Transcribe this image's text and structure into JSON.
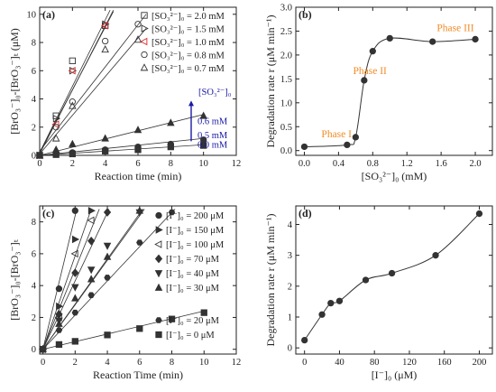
{
  "chart_data": [
    {
      "id": "a",
      "type": "scatter",
      "panel_label": "(a)",
      "xlabel": "Reaction time (min)",
      "ylabel": "[BrO₃⁻]₀-[BrO₃⁻]ₜ (μM)",
      "xlim": [
        0,
        12
      ],
      "ylim": [
        0,
        10.5
      ],
      "xticks": [
        0,
        2,
        4,
        6,
        8,
        10,
        12
      ],
      "yticks": [
        0,
        2,
        4,
        6,
        8,
        10
      ],
      "legend_position": "top-right",
      "series": [
        {
          "name": "[SO₃²⁻]₀ = 2.0 mM",
          "marker": "square",
          "color": "#333333",
          "x": [
            0,
            1,
            2,
            4
          ],
          "y": [
            0,
            2.8,
            6.7,
            9.2
          ],
          "fit": [
            [
              0,
              0.1
            ],
            [
              4.5,
              10.3
            ]
          ]
        },
        {
          "name": "[SO₃²⁻]₀ = 1.5 mM",
          "marker": "triangle-right",
          "color": "#333333",
          "x": [
            0,
            1,
            2,
            4
          ],
          "y": [
            0,
            2.6,
            6.0,
            9.3
          ],
          "fit": [
            [
              0,
              0.2
            ],
            [
              4.3,
              10.3
            ]
          ]
        },
        {
          "name": "[SO₃²⁻]₀ = 1.0 mM",
          "marker": "triangle-left",
          "color": "#d62728",
          "x": [
            0,
            1,
            2,
            4
          ],
          "y": [
            0,
            2.2,
            6.0,
            9.2
          ],
          "fit": [
            [
              0,
              0.2
            ],
            [
              4.5,
              10.2
            ]
          ]
        },
        {
          "name": "[SO₃²⁻]₀ = 0.8 mM",
          "marker": "circle",
          "color": "#333333",
          "x": [
            0,
            1,
            2,
            4,
            6
          ],
          "y": [
            0,
            2.0,
            3.8,
            8.1,
            9.3
          ],
          "fit": [
            [
              0,
              0.3
            ],
            [
              6.5,
              10.0
            ]
          ]
        },
        {
          "name": "[SO₃²⁻]₀ = 0.7 mM",
          "marker": "triangle-up",
          "color": "#333333",
          "x": [
            0,
            1,
            2,
            4,
            6
          ],
          "y": [
            0,
            1.2,
            3.5,
            7.5,
            8.2
          ],
          "fit": [
            [
              0,
              0.1
            ],
            [
              6.5,
              9.0
            ]
          ]
        },
        {
          "name": "0.6 mM",
          "marker": "triangle-up-filled",
          "color": "#333333",
          "x": [
            0,
            1,
            2,
            4,
            6,
            8,
            10
          ],
          "y": [
            0,
            0.4,
            0.8,
            1.2,
            1.8,
            2.3,
            2.8
          ],
          "fit": [
            [
              0,
              0
            ],
            [
              10,
              2.9
            ]
          ]
        },
        {
          "name": "0.5 mM",
          "marker": "circle-filled",
          "color": "#333333",
          "x": [
            0,
            1,
            2,
            4,
            6,
            8,
            10
          ],
          "y": [
            0,
            0.1,
            0.2,
            0.4,
            0.6,
            0.8,
            1.1
          ],
          "fit": [
            [
              0,
              0
            ],
            [
              10,
              1.2
            ]
          ]
        },
        {
          "name": "0.0 mM",
          "marker": "square-filled",
          "color": "#333333",
          "x": [
            0,
            1,
            2,
            4,
            6,
            8,
            10
          ],
          "y": [
            0,
            0.05,
            0.1,
            0.3,
            0.4,
            0.6,
            0.7
          ],
          "fit": [
            [
              0,
              0
            ],
            [
              10,
              0.75
            ]
          ]
        }
      ],
      "annotation": {
        "label": "[SO₃²⁻]₀",
        "color": "#1a1aa6"
      }
    },
    {
      "id": "b",
      "type": "line",
      "panel_label": "(b)",
      "xlabel": "[SO₃²⁻]₀ (mM)",
      "ylabel": "Degradation rate r (μM min⁻¹)",
      "xlim": [
        -0.1,
        2.2
      ],
      "ylim": [
        -0.1,
        3.0
      ],
      "xticks": [
        0.0,
        0.4,
        0.8,
        1.2,
        1.6,
        2.0
      ],
      "yticks": [
        0.0,
        0.5,
        1.0,
        1.5,
        2.0,
        2.5,
        3.0
      ],
      "series": [
        {
          "name": "",
          "marker": "circle-filled",
          "color": "#333333",
          "x": [
            0.0,
            0.5,
            0.6,
            0.7,
            0.8,
            1.0,
            1.5,
            2.0
          ],
          "y": [
            0.08,
            0.12,
            0.28,
            1.47,
            2.08,
            2.35,
            2.28,
            2.33
          ]
        }
      ],
      "annotations": [
        {
          "text": "Phase I",
          "x": 0.2,
          "y": 0.28,
          "color": "#f28c28"
        },
        {
          "text": "Phase II",
          "x": 0.57,
          "y": 1.6,
          "color": "#f28c28"
        },
        {
          "text": "Phase III",
          "x": 1.55,
          "y": 2.5,
          "color": "#f28c28"
        }
      ]
    },
    {
      "id": "c",
      "type": "scatter",
      "panel_label": "(c)",
      "xlabel": "Reaction Time (min)",
      "ylabel": "[BrO₃⁻]₀-[BrO₃⁻]ₜ",
      "xlim": [
        -0.2,
        12
      ],
      "ylim": [
        -0.3,
        9
      ],
      "xticks": [
        0,
        2,
        4,
        6,
        8,
        10,
        12
      ],
      "yticks": [
        0,
        2,
        4,
        6,
        8
      ],
      "legend_position": "right",
      "series": [
        {
          "name": "[I⁻]₀ = 200 μM",
          "marker": "circle-filled",
          "x": [
            0,
            1,
            2
          ],
          "y": [
            0,
            3.8,
            8.7
          ],
          "fit": [
            [
              0,
              0
            ],
            [
              2.1,
              8.8
            ]
          ]
        },
        {
          "name": "[I⁻]₀ = 150 μM",
          "marker": "triangle-right-filled",
          "x": [
            0,
            1,
            2,
            3
          ],
          "y": [
            0,
            2.7,
            6.9,
            8.7
          ],
          "fit": [
            [
              0,
              0
            ],
            [
              3.0,
              8.8
            ]
          ]
        },
        {
          "name": "[I⁻]₀ = 100 μM",
          "marker": "triangle-left",
          "x": [
            0,
            1,
            2,
            3
          ],
          "y": [
            0,
            2.0,
            6.0,
            8.1
          ],
          "fit": [
            [
              0,
              0
            ],
            [
              3.5,
              8.8
            ]
          ]
        },
        {
          "name": "[I⁻]₀ = 70 μM",
          "marker": "diamond-filled",
          "x": [
            0,
            1,
            2,
            3,
            4
          ],
          "y": [
            0,
            2.2,
            4.8,
            6.8,
            8.6
          ],
          "fit": [
            [
              0,
              0
            ],
            [
              4.1,
              8.8
            ]
          ]
        },
        {
          "name": "[I⁻]₀ = 40 μM",
          "marker": "triangle-down-filled",
          "x": [
            0,
            1,
            2,
            3,
            4,
            6
          ],
          "y": [
            0,
            1.8,
            3.9,
            5.0,
            6.5,
            8.6
          ],
          "fit": [
            [
              0,
              0
            ],
            [
              6.2,
              8.8
            ]
          ]
        },
        {
          "name": "[I⁻]₀ = 30 μM",
          "marker": "triangle-up-filled",
          "x": [
            0,
            1,
            2,
            3,
            4,
            6
          ],
          "y": [
            0,
            1.6,
            3.2,
            4.4,
            5.8,
            8.7
          ],
          "fit": [
            [
              0,
              0
            ],
            [
              6.3,
              8.8
            ]
          ]
        },
        {
          "name": "[I⁻]₀ = 20 μM",
          "marker": "hexagon-filled",
          "x": [
            0,
            1,
            2,
            3,
            4,
            6,
            8
          ],
          "y": [
            0,
            1.2,
            2.3,
            3.4,
            4.5,
            6.7,
            8.6
          ],
          "fit": [
            [
              0,
              0
            ],
            [
              8.2,
              8.8
            ]
          ]
        },
        {
          "name": "[I⁻]₀ = 0 μM",
          "marker": "square-filled",
          "x": [
            0,
            1,
            2,
            4,
            6,
            8,
            10
          ],
          "y": [
            0,
            0.3,
            0.5,
            0.9,
            1.3,
            1.9,
            2.3
          ],
          "fit": [
            [
              0,
              0
            ],
            [
              10,
              2.4
            ]
          ]
        }
      ]
    },
    {
      "id": "d",
      "type": "line",
      "panel_label": "(d)",
      "xlabel": "[I⁻]₀ (μM)",
      "ylabel": "Degradation rate r (μM min⁻¹)",
      "xlim": [
        -10,
        215
      ],
      "ylim": [
        -0.2,
        4.6
      ],
      "xticks": [
        0,
        40,
        80,
        120,
        160,
        200
      ],
      "yticks": [
        0,
        1,
        2,
        3,
        4
      ],
      "series": [
        {
          "name": "",
          "marker": "circle-filled",
          "x": [
            0,
            20,
            30,
            40,
            70,
            100,
            150,
            200
          ],
          "y": [
            0.25,
            1.08,
            1.45,
            1.52,
            2.2,
            2.42,
            3.0,
            4.35
          ]
        }
      ]
    }
  ]
}
